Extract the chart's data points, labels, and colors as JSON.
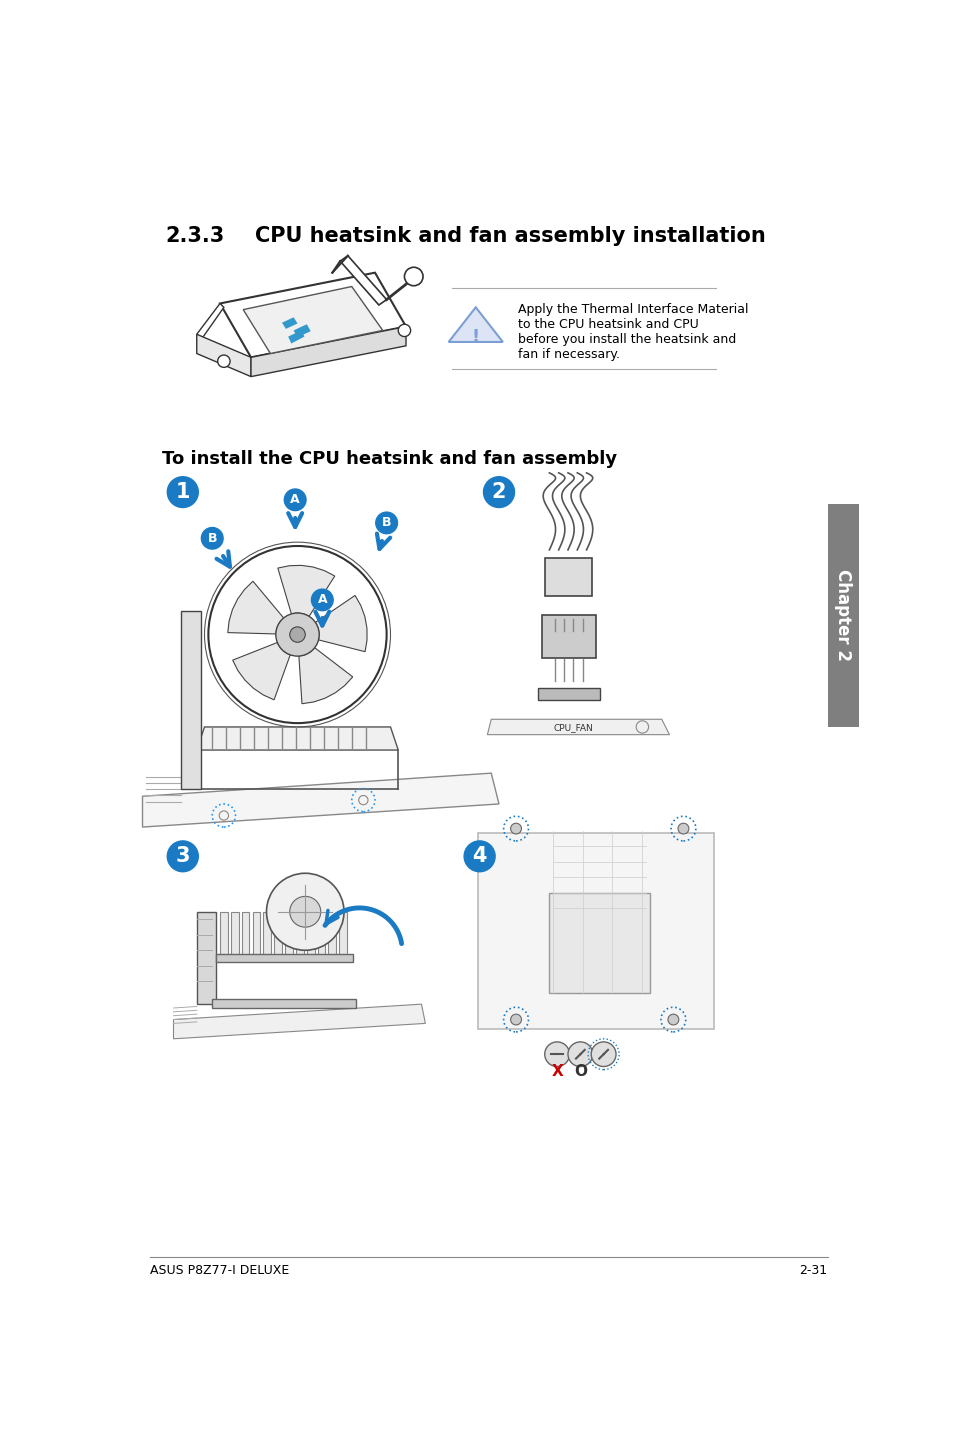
{
  "title_num": "2.3.3",
  "title_text": "CPU heatsink and fan assembly installation",
  "subtitle": "To install the CPU heatsink and fan assembly",
  "warning_text": "Apply the Thermal Interface Material\nto the CPU heatsink and CPU\nbefore you install the heatsink and\nfan if necessary.",
  "footer_left": "ASUS P8Z77-I DELUXE",
  "footer_right": "2-31",
  "chapter_label": "Chapter 2",
  "bg_color": "#ffffff",
  "text_color": "#000000",
  "blue_color": "#1a7bc4",
  "warn_blue": "#7b9fd4",
  "gray_color": "#808080",
  "line_color": "#333333",
  "light_gray": "#cccccc"
}
